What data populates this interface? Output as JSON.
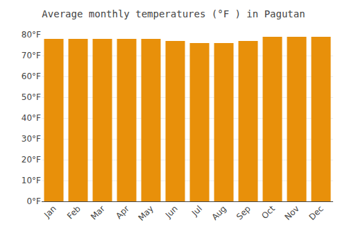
{
  "chart_data": {
    "type": "bar",
    "title": "Average monthly temperatures (°F ) in Pagutan",
    "categories": [
      "Jan",
      "Feb",
      "Mar",
      "Apr",
      "May",
      "Jun",
      "Jul",
      "Aug",
      "Sep",
      "Oct",
      "Nov",
      "Dec"
    ],
    "values": [
      78,
      78,
      78,
      78,
      78,
      77,
      76,
      76,
      77,
      79,
      79,
      79
    ],
    "color": "#E8900A",
    "ylim": [
      0,
      80
    ],
    "yticks": [
      {
        "value": 0,
        "label": "0°F"
      },
      {
        "value": 10,
        "label": "10°F"
      },
      {
        "value": 20,
        "label": "20°F"
      },
      {
        "value": 30,
        "label": "30°F"
      },
      {
        "value": 40,
        "label": "40°F"
      },
      {
        "value": 50,
        "label": "50°F"
      },
      {
        "value": 60,
        "label": "60°F"
      },
      {
        "value": 70,
        "label": "70°F"
      },
      {
        "value": 80,
        "label": "80°F"
      }
    ],
    "grid": true
  }
}
